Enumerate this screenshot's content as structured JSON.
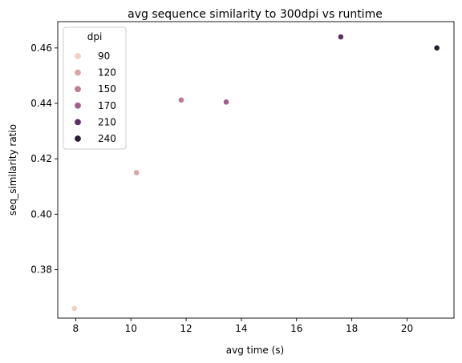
{
  "chart_data": {
    "type": "scatter",
    "title": "avg sequence similarity to 300dpi vs runtime",
    "xlabel": "avg time (s)",
    "ylabel": "seq_similarity ratio",
    "xlim": [
      7.35,
      21.7
    ],
    "ylim": [
      0.3625,
      0.4695
    ],
    "xticks": [
      8,
      10,
      12,
      14,
      16,
      18,
      20
    ],
    "yticks": [
      0.38,
      0.4,
      0.42,
      0.44,
      0.46
    ],
    "ytick_labels": [
      "0.38",
      "0.40",
      "0.42",
      "0.44",
      "0.46"
    ],
    "grid": false,
    "legend": {
      "title": "dpi",
      "placement": "top-left"
    },
    "series": [
      {
        "name": "90",
        "color": "#efd1c6",
        "x": [
          7.95
        ],
        "y": [
          0.366
        ]
      },
      {
        "name": "120",
        "color": "#d9a5a9",
        "x": [
          10.2
        ],
        "y": [
          0.415
        ]
      },
      {
        "name": "150",
        "color": "#c07b95",
        "x": [
          11.82
        ],
        "y": [
          0.4412
        ]
      },
      {
        "name": "170",
        "color": "#a45c8c",
        "x": [
          13.45
        ],
        "y": [
          0.4405
        ]
      },
      {
        "name": "210",
        "color": "#5d3165",
        "x": [
          17.6
        ],
        "y": [
          0.464
        ]
      },
      {
        "name": "240",
        "color": "#2b1c35",
        "x": [
          21.08
        ],
        "y": [
          0.46
        ]
      }
    ]
  }
}
